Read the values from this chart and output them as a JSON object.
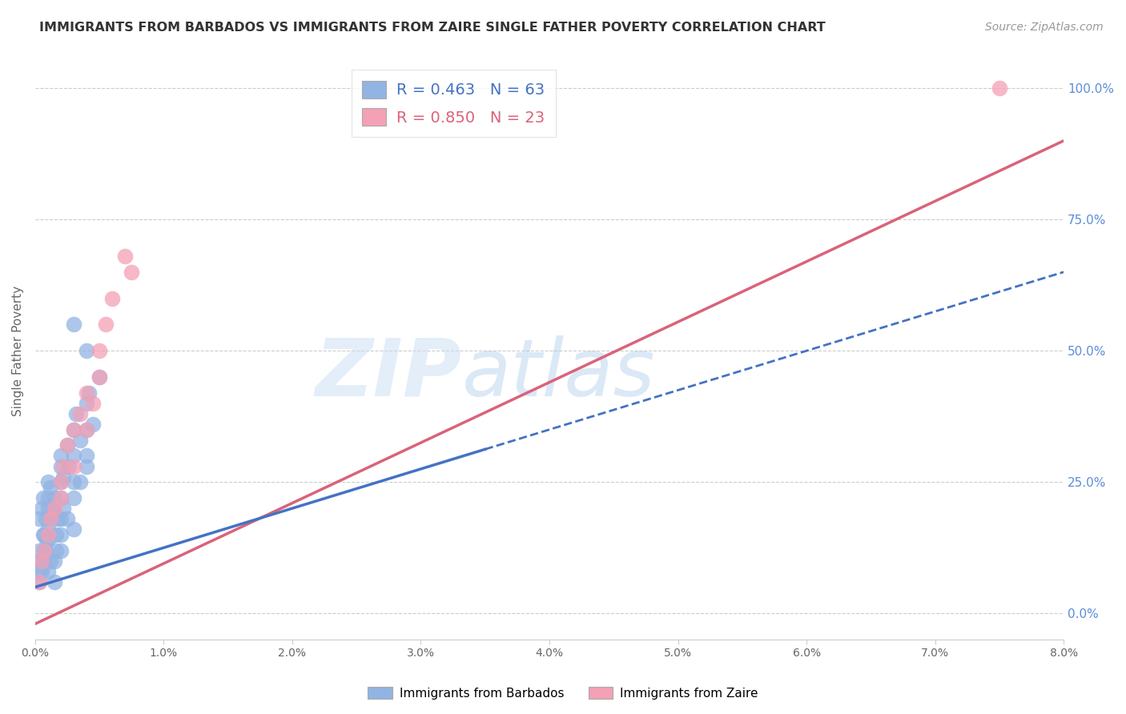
{
  "title": "IMMIGRANTS FROM BARBADOS VS IMMIGRANTS FROM ZAIRE SINGLE FATHER POVERTY CORRELATION CHART",
  "source": "Source: ZipAtlas.com",
  "ylabel": "Single Father Poverty",
  "legend_barbados": "R = 0.463   N = 63",
  "legend_zaire": "R = 0.850   N = 23",
  "barbados_color": "#92b4e3",
  "zaire_color": "#f4a0b5",
  "barbados_line_color": "#4472c4",
  "zaire_line_color": "#d9637a",
  "watermark_zip": "ZIP",
  "watermark_atlas": "atlas",
  "xmin": 0.0,
  "xmax": 0.08,
  "ymin": -0.05,
  "ymax": 1.05,
  "background_color": "#ffffff",
  "grid_color": "#cccccc",
  "barbados_x": [
    0.0003,
    0.0005,
    0.0006,
    0.0007,
    0.0008,
    0.001,
    0.001,
    0.001,
    0.0012,
    0.0013,
    0.0014,
    0.0015,
    0.0016,
    0.0018,
    0.002,
    0.002,
    0.002,
    0.002,
    0.0022,
    0.0025,
    0.0026,
    0.003,
    0.003,
    0.003,
    0.0032,
    0.0035,
    0.004,
    0.004,
    0.004,
    0.0042,
    0.0045,
    0.005,
    0.0003,
    0.0004,
    0.0005,
    0.0006,
    0.0007,
    0.0008,
    0.001,
    0.001,
    0.0012,
    0.0014,
    0.0015,
    0.0016,
    0.002,
    0.002,
    0.0022,
    0.003,
    0.003,
    0.0035,
    0.004,
    0.0003,
    0.0004,
    0.0005,
    0.0007,
    0.0009,
    0.001,
    0.0012,
    0.0015,
    0.002,
    0.0025,
    0.003,
    0.004
  ],
  "barbados_y": [
    0.18,
    0.2,
    0.22,
    0.15,
    0.18,
    0.22,
    0.25,
    0.2,
    0.24,
    0.18,
    0.2,
    0.22,
    0.15,
    0.18,
    0.28,
    0.25,
    0.3,
    0.22,
    0.26,
    0.32,
    0.28,
    0.35,
    0.3,
    0.25,
    0.38,
    0.33,
    0.4,
    0.35,
    0.28,
    0.42,
    0.36,
    0.45,
    0.12,
    0.1,
    0.08,
    0.15,
    0.1,
    0.12,
    0.16,
    0.14,
    0.18,
    0.2,
    0.1,
    0.12,
    0.18,
    0.15,
    0.2,
    0.22,
    0.16,
    0.25,
    0.3,
    0.06,
    0.08,
    0.1,
    0.12,
    0.14,
    0.08,
    0.1,
    0.06,
    0.12,
    0.18,
    0.55,
    0.5
  ],
  "zaire_x": [
    0.0003,
    0.0005,
    0.0007,
    0.001,
    0.0012,
    0.0015,
    0.002,
    0.002,
    0.0022,
    0.0025,
    0.003,
    0.003,
    0.0035,
    0.004,
    0.004,
    0.0045,
    0.005,
    0.005,
    0.0055,
    0.006,
    0.007,
    0.0075,
    0.075
  ],
  "zaire_y": [
    0.06,
    0.1,
    0.12,
    0.15,
    0.18,
    0.2,
    0.22,
    0.25,
    0.28,
    0.32,
    0.35,
    0.28,
    0.38,
    0.42,
    0.35,
    0.4,
    0.45,
    0.5,
    0.55,
    0.6,
    0.68,
    0.65,
    1.0
  ],
  "barb_line_x0": 0.0,
  "barb_line_y0": 0.05,
  "barb_line_x1": 0.08,
  "barb_line_y1": 0.65,
  "zaire_line_x0": 0.0,
  "zaire_line_y0": -0.02,
  "zaire_line_x1": 0.08,
  "zaire_line_y1": 0.9
}
